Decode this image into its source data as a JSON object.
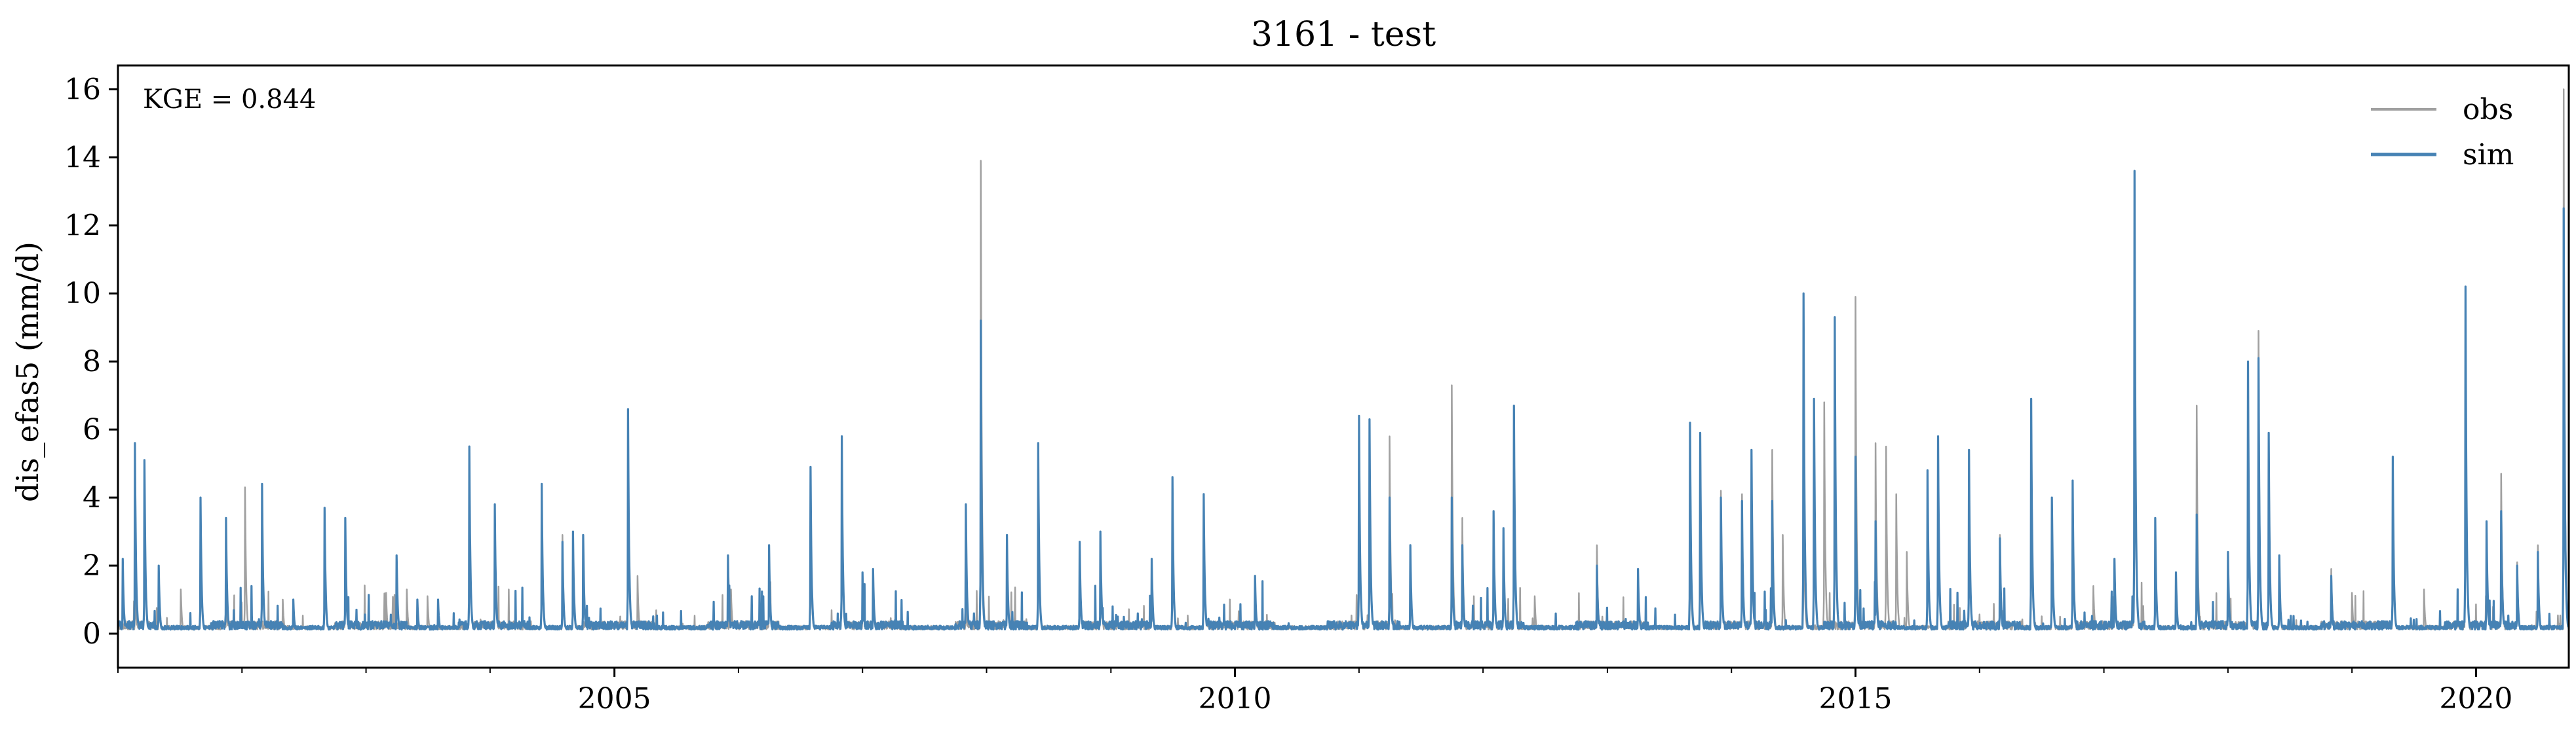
{
  "chart_data": {
    "type": "line",
    "title": "3161 - test",
    "xlabel": "",
    "ylabel": "dis_efas5 (mm/d)",
    "annotation": "KGE = 0.844",
    "x_range": [
      "2001-01-01",
      "2020-09-30"
    ],
    "ylim": [
      -1,
      16.7
    ],
    "y_ticks": [
      0,
      2,
      4,
      6,
      8,
      10,
      12,
      14,
      16
    ],
    "x_tick_labels": [
      {
        "date": "2005-01-01",
        "label": "2005"
      },
      {
        "date": "2010-01-01",
        "label": "2010"
      },
      {
        "date": "2015-01-01",
        "label": "2015"
      },
      {
        "date": "2020-01-01",
        "label": "2020"
      }
    ],
    "x_minor_ticks": [
      "2001-01-01",
      "2002-01-01",
      "2003-01-01",
      "2004-01-01",
      "2006-01-01",
      "2007-01-01",
      "2008-01-01",
      "2009-01-01",
      "2011-01-01",
      "2012-01-01",
      "2013-01-01",
      "2014-01-01",
      "2016-01-01",
      "2017-01-01",
      "2018-01-01",
      "2019-01-01"
    ],
    "grid": false,
    "legend_position": "top-right",
    "baseline": 0.12,
    "series": [
      {
        "name": "obs",
        "color": "#a0a0a0",
        "peaks": [
          [
            "2001-02-20",
            1.5
          ],
          [
            "2001-03-20",
            4.9
          ],
          [
            "2001-05-01",
            1.6
          ],
          [
            "2001-07-05",
            1.3
          ],
          [
            "2001-09-01",
            3.9
          ],
          [
            "2001-11-15",
            1.2
          ],
          [
            "2002-01-10",
            4.3
          ],
          [
            "2002-05-01",
            1.0
          ],
          [
            "2002-09-01",
            3.6
          ],
          [
            "2002-11-01",
            3.3
          ],
          [
            "2003-03-01",
            1.2
          ],
          [
            "2003-05-01",
            1.3
          ],
          [
            "2003-07-01",
            1.1
          ],
          [
            "2003-11-01",
            5.4
          ],
          [
            "2004-01-15",
            3.8
          ],
          [
            "2004-06-01",
            4.3
          ],
          [
            "2004-08-01",
            2.9
          ],
          [
            "2004-09-01",
            2.7
          ],
          [
            "2005-02-10",
            6.5
          ],
          [
            "2005-03-10",
            1.7
          ],
          [
            "2005-12-10",
            1.3
          ],
          [
            "2006-04-01",
            2.4
          ],
          [
            "2006-08-01",
            3.7
          ],
          [
            "2006-11-01",
            5.6
          ],
          [
            "2007-01-01",
            1.8
          ],
          [
            "2007-02-01",
            1.8
          ],
          [
            "2007-11-01",
            1.1
          ],
          [
            "2007-12-15",
            13.9
          ],
          [
            "2008-03-01",
            2.8
          ],
          [
            "2008-06-01",
            5.5
          ],
          [
            "2008-10-01",
            2.7
          ],
          [
            "2008-12-01",
            2.9
          ],
          [
            "2009-05-01",
            2.2
          ],
          [
            "2009-07-01",
            4.5
          ],
          [
            "2009-10-01",
            4.0
          ],
          [
            "2010-03-01",
            1.5
          ],
          [
            "2011-01-01",
            6.3
          ],
          [
            "2011-02-01",
            6.1
          ],
          [
            "2011-04-01",
            5.8
          ],
          [
            "2011-06-01",
            2.6
          ],
          [
            "2011-10-01",
            7.3
          ],
          [
            "2011-11-01",
            3.4
          ],
          [
            "2012-02-01",
            3.5
          ],
          [
            "2012-03-01",
            3.1
          ],
          [
            "2012-04-01",
            6.6
          ],
          [
            "2012-06-01",
            1.1
          ],
          [
            "2012-12-01",
            2.6
          ],
          [
            "2013-04-01",
            1.8
          ],
          [
            "2013-09-01",
            4.3
          ],
          [
            "2013-10-01",
            5.9
          ],
          [
            "2013-12-01",
            4.2
          ],
          [
            "2014-02-01",
            4.1
          ],
          [
            "2014-03-01",
            4.6
          ],
          [
            "2014-05-01",
            5.4
          ],
          [
            "2014-06-01",
            2.9
          ],
          [
            "2014-08-01",
            4.5
          ],
          [
            "2014-10-01",
            6.8
          ],
          [
            "2015-01-01",
            9.9
          ],
          [
            "2015-03-01",
            5.6
          ],
          [
            "2015-04-01",
            5.5
          ],
          [
            "2015-05-01",
            4.1
          ],
          [
            "2015-06-01",
            2.4
          ],
          [
            "2015-09-01",
            5.6
          ],
          [
            "2015-12-01",
            5.4
          ],
          [
            "2016-03-01",
            2.9
          ],
          [
            "2016-06-01",
            6.7
          ],
          [
            "2016-08-01",
            4.0
          ],
          [
            "2016-10-01",
            4.4
          ],
          [
            "2016-12-01",
            1.4
          ],
          [
            "2017-02-01",
            2.2
          ],
          [
            "2017-04-01",
            13.5
          ],
          [
            "2017-06-01",
            3.4
          ],
          [
            "2017-08-01",
            1.8
          ],
          [
            "2017-10-01",
            6.7
          ],
          [
            "2018-01-01",
            2.4
          ],
          [
            "2018-03-01",
            8.0
          ],
          [
            "2018-04-01",
            8.9
          ],
          [
            "2018-05-01",
            5.9
          ],
          [
            "2018-06-01",
            2.2
          ],
          [
            "2018-11-01",
            1.9
          ],
          [
            "2019-01-01",
            1.2
          ],
          [
            "2019-05-01",
            5.1
          ],
          [
            "2019-08-01",
            1.3
          ],
          [
            "2019-12-01",
            10.1
          ],
          [
            "2020-02-01",
            3.3
          ],
          [
            "2020-03-15",
            4.7
          ],
          [
            "2020-05-01",
            2.1
          ],
          [
            "2020-07-01",
            2.6
          ],
          [
            "2020-09-15",
            16.0
          ]
        ]
      },
      {
        "name": "sim",
        "color": "#4682b4",
        "peaks": [
          [
            "2001-01-15",
            2.2
          ],
          [
            "2001-02-20",
            5.6
          ],
          [
            "2001-03-20",
            5.1
          ],
          [
            "2001-05-01",
            2.0
          ],
          [
            "2001-09-01",
            4.0
          ],
          [
            "2001-11-15",
            3.4
          ],
          [
            "2002-03-01",
            4.4
          ],
          [
            "2002-06-01",
            1.0
          ],
          [
            "2002-09-01",
            3.7
          ],
          [
            "2002-11-01",
            3.4
          ],
          [
            "2003-04-01",
            2.3
          ],
          [
            "2003-06-01",
            1.0
          ],
          [
            "2003-08-01",
            1.0
          ],
          [
            "2003-11-01",
            5.5
          ],
          [
            "2004-01-15",
            3.8
          ],
          [
            "2004-06-01",
            4.4
          ],
          [
            "2004-08-01",
            2.7
          ],
          [
            "2004-09-01",
            3.0
          ],
          [
            "2004-10-01",
            2.9
          ],
          [
            "2005-02-10",
            6.6
          ],
          [
            "2005-12-01",
            2.3
          ],
          [
            "2006-04-01",
            2.6
          ],
          [
            "2006-08-01",
            4.9
          ],
          [
            "2006-11-01",
            5.8
          ],
          [
            "2007-01-01",
            1.8
          ],
          [
            "2007-02-01",
            1.9
          ],
          [
            "2007-11-01",
            3.8
          ],
          [
            "2007-12-15",
            9.2
          ],
          [
            "2008-03-01",
            2.9
          ],
          [
            "2008-06-01",
            5.6
          ],
          [
            "2008-10-01",
            2.7
          ],
          [
            "2008-12-01",
            3.0
          ],
          [
            "2009-05-01",
            2.2
          ],
          [
            "2009-07-01",
            4.6
          ],
          [
            "2009-10-01",
            4.1
          ],
          [
            "2010-03-01",
            1.7
          ],
          [
            "2011-01-01",
            6.4
          ],
          [
            "2011-02-01",
            6.3
          ],
          [
            "2011-04-01",
            4.0
          ],
          [
            "2011-06-01",
            2.6
          ],
          [
            "2011-10-01",
            4.0
          ],
          [
            "2011-11-01",
            2.6
          ],
          [
            "2012-02-01",
            3.6
          ],
          [
            "2012-03-01",
            3.1
          ],
          [
            "2012-04-01",
            6.7
          ],
          [
            "2012-12-01",
            2.0
          ],
          [
            "2013-04-01",
            1.9
          ],
          [
            "2013-09-01",
            6.2
          ],
          [
            "2013-10-01",
            5.9
          ],
          [
            "2013-12-01",
            4.0
          ],
          [
            "2014-02-01",
            3.9
          ],
          [
            "2014-03-01",
            5.4
          ],
          [
            "2014-05-01",
            3.9
          ],
          [
            "2014-08-01",
            10.0
          ],
          [
            "2014-09-01",
            6.9
          ],
          [
            "2014-11-01",
            9.3
          ],
          [
            "2015-01-01",
            5.2
          ],
          [
            "2015-03-01",
            3.3
          ],
          [
            "2015-08-01",
            4.8
          ],
          [
            "2015-09-01",
            5.8
          ],
          [
            "2015-12-01",
            5.4
          ],
          [
            "2016-03-01",
            2.8
          ],
          [
            "2016-06-01",
            6.9
          ],
          [
            "2016-08-01",
            4.0
          ],
          [
            "2016-10-01",
            4.5
          ],
          [
            "2017-02-01",
            2.2
          ],
          [
            "2017-04-01",
            13.6
          ],
          [
            "2017-06-01",
            3.4
          ],
          [
            "2017-08-01",
            1.8
          ],
          [
            "2017-10-01",
            3.5
          ],
          [
            "2018-01-01",
            2.4
          ],
          [
            "2018-03-01",
            8.0
          ],
          [
            "2018-04-01",
            8.1
          ],
          [
            "2018-05-01",
            5.9
          ],
          [
            "2018-06-01",
            2.3
          ],
          [
            "2018-11-01",
            1.7
          ],
          [
            "2019-05-01",
            5.2
          ],
          [
            "2019-12-01",
            10.2
          ],
          [
            "2020-02-01",
            3.3
          ],
          [
            "2020-03-15",
            3.6
          ],
          [
            "2020-05-01",
            2.0
          ],
          [
            "2020-07-01",
            2.4
          ],
          [
            "2020-09-15",
            12.5
          ]
        ]
      }
    ]
  }
}
